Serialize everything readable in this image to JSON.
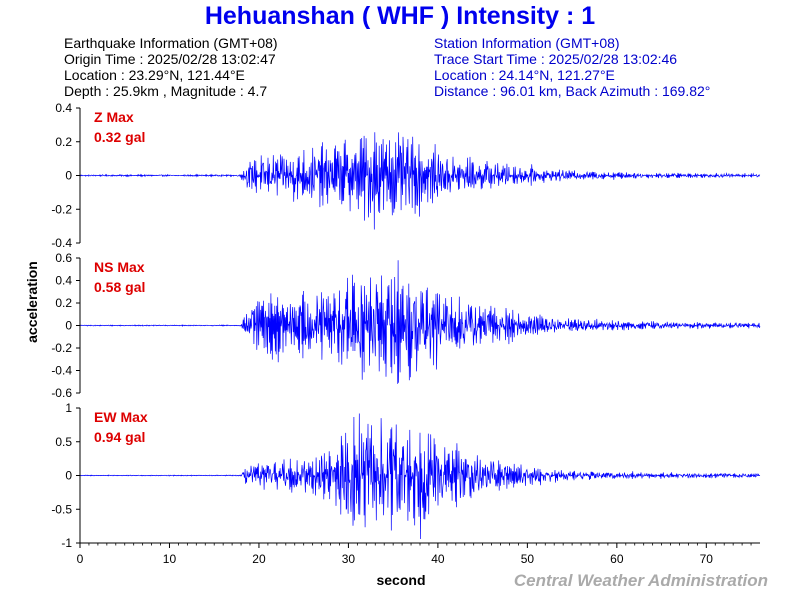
{
  "title": "Hehuanshan ( WHF ) Intensity : 1",
  "earthquake": {
    "heading": "Earthquake Information (GMT+08)",
    "origin_time": "Origin Time : 2025/02/28 13:02:47",
    "location": "Location : 23.29°N, 121.44°E",
    "depth_magnitude": "Depth : 25.9km , Magnitude : 4.7"
  },
  "station": {
    "heading": "Station Information (GMT+08)",
    "trace_start": "Trace Start Time : 2025/02/28 13:02:46",
    "location": "Location : 24.14°N, 121.27°E",
    "distance": "Distance : 96.01 km, Back Azimuth : 169.82°"
  },
  "credit": "Central Weather Administration",
  "colors": {
    "title": "#0000ee",
    "trace": "#0000ff",
    "max_label": "#dd0000",
    "credit": "#aaaaaa",
    "station_text": "#0000cc"
  },
  "chart_data": {
    "type": "line",
    "xlabel": "second",
    "ylabel": "acceleration",
    "xlim": [
      0,
      76
    ],
    "x_ticks": [
      0,
      10,
      20,
      30,
      40,
      50,
      60,
      70
    ],
    "x_tick_labels": [
      "0",
      "10",
      "20",
      "30",
      "40",
      "50",
      "60",
      "70"
    ],
    "panels": [
      {
        "name": "Z",
        "max_title": "Z Max",
        "max_value": "0.32 gal",
        "peak": 0.32,
        "ylim": [
          -0.4,
          0.4
        ],
        "y_ticks": [
          -0.4,
          -0.2,
          0,
          0.2,
          0.4
        ],
        "y_tick_labels": [
          "-0.4",
          "-0.2",
          "0",
          "0.2",
          "0.4"
        ],
        "onset": 17.8,
        "envelope": [
          [
            0,
            0.004
          ],
          [
            17.8,
            0.004
          ],
          [
            18.5,
            0.06
          ],
          [
            20,
            0.1
          ],
          [
            24,
            0.13
          ],
          [
            28,
            0.16
          ],
          [
            31,
            0.2
          ],
          [
            33,
            0.26
          ],
          [
            35,
            0.24
          ],
          [
            37,
            0.2
          ],
          [
            40,
            0.14
          ],
          [
            44,
            0.09
          ],
          [
            48,
            0.06
          ],
          [
            52,
            0.035
          ],
          [
            56,
            0.025
          ],
          [
            62,
            0.015
          ],
          [
            68,
            0.012
          ],
          [
            76,
            0.01
          ]
        ]
      },
      {
        "name": "NS",
        "max_title": "NS Max",
        "max_value": "0.58 gal",
        "peak": 0.58,
        "ylim": [
          -0.6,
          0.6
        ],
        "y_ticks": [
          -0.6,
          -0.4,
          -0.2,
          0,
          0.2,
          0.4,
          0.6
        ],
        "y_tick_labels": [
          "-0.6",
          "-0.4",
          "-0.2",
          "0",
          "0.2",
          "0.4",
          "0.6"
        ],
        "onset": 18.0,
        "envelope": [
          [
            0,
            0.004
          ],
          [
            18,
            0.004
          ],
          [
            18.6,
            0.12
          ],
          [
            20,
            0.22
          ],
          [
            24,
            0.24
          ],
          [
            28,
            0.3
          ],
          [
            30,
            0.42
          ],
          [
            32,
            0.45
          ],
          [
            34,
            0.4
          ],
          [
            36,
            0.46
          ],
          [
            38,
            0.34
          ],
          [
            41,
            0.28
          ],
          [
            44,
            0.2
          ],
          [
            48,
            0.14
          ],
          [
            52,
            0.08
          ],
          [
            56,
            0.05
          ],
          [
            62,
            0.035
          ],
          [
            70,
            0.025
          ],
          [
            76,
            0.02
          ]
        ]
      },
      {
        "name": "EW",
        "max_title": "EW Max",
        "max_value": "0.94 gal",
        "peak": 0.94,
        "ylim": [
          -1,
          1
        ],
        "y_ticks": [
          -1,
          -0.5,
          0,
          0.5,
          1
        ],
        "y_tick_labels": [
          "-1",
          "-0.5",
          "0",
          "0.5",
          "1"
        ],
        "onset": 18.0,
        "envelope": [
          [
            0,
            0.005
          ],
          [
            18,
            0.005
          ],
          [
            18.6,
            0.12
          ],
          [
            20,
            0.14
          ],
          [
            24,
            0.2
          ],
          [
            28,
            0.32
          ],
          [
            30,
            0.6
          ],
          [
            32,
            0.7
          ],
          [
            34,
            0.65
          ],
          [
            36,
            0.6
          ],
          [
            38,
            0.62
          ],
          [
            40,
            0.4
          ],
          [
            43,
            0.32
          ],
          [
            46,
            0.2
          ],
          [
            50,
            0.12
          ],
          [
            54,
            0.06
          ],
          [
            60,
            0.04
          ],
          [
            68,
            0.03
          ],
          [
            76,
            0.025
          ]
        ]
      }
    ]
  }
}
